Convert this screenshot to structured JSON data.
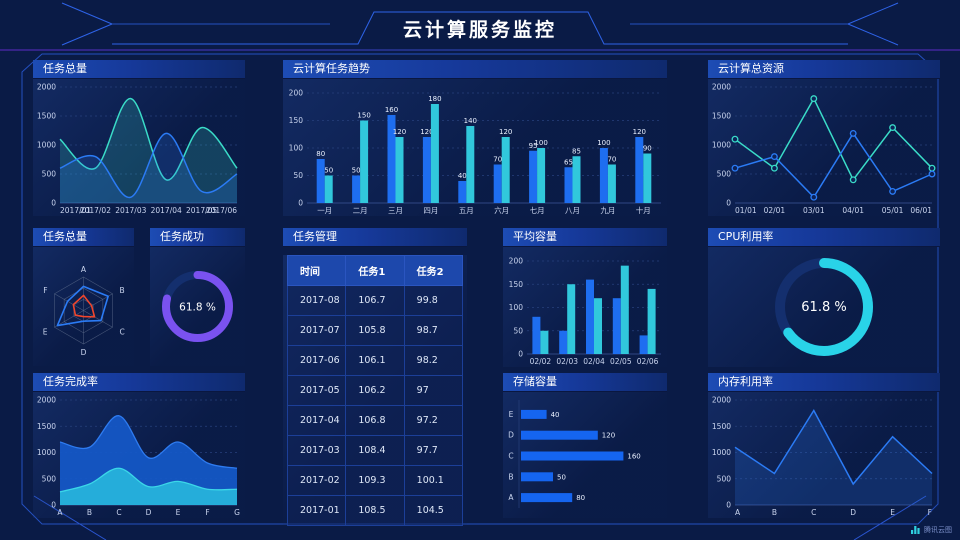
{
  "palette": {
    "background": "#0a1b46",
    "panel_header_from": "#1d4cb4",
    "panel_header_to": "#0f2a6e",
    "frame_line": "#2450c0",
    "accent_blue": "#1e6ef0",
    "accent_cyan": "#31c8dc",
    "accent_teal": "#3adcc8",
    "accent_purple": "#7a52f0",
    "accent_red": "#f0452c",
    "axis_text": "#c9d4ee",
    "grid_line": "#27407c"
  },
  "header": {
    "title": "云计算服务监控"
  },
  "footer": {
    "logo_text": "腾讯云图"
  },
  "panels": {
    "task_total_line": {
      "title": "任务总量"
    },
    "task_trend": {
      "title": "云计算任务趋势"
    },
    "total_resources": {
      "title": "云计算总资源"
    },
    "task_radar": {
      "title": "任务总量"
    },
    "task_success": {
      "title": "任务成功"
    },
    "task_table": {
      "title": "任务管理"
    },
    "avg_capacity": {
      "title": "平均容量"
    },
    "cpu_usage": {
      "title": "CPU利用率"
    },
    "completion_rate": {
      "title": "任务完成率"
    },
    "storage": {
      "title": "存储容量"
    },
    "memory": {
      "title": "内存利用率"
    }
  },
  "chart_data": [
    {
      "id": "task_total_line",
      "type": "line",
      "title": "任务总量",
      "x": [
        "2017/01",
        "2017/02",
        "2017/03",
        "2017/04",
        "2017/05",
        "2017/06"
      ],
      "ylim": [
        0,
        2000
      ],
      "yticks": [
        0,
        500,
        1000,
        1500,
        2000
      ],
      "grid": "dashed",
      "series": [
        {
          "name": "series-teal",
          "color": "#3adcc8",
          "smooth": true,
          "fill": true,
          "values": [
            1100,
            600,
            1800,
            400,
            1300,
            600
          ]
        },
        {
          "name": "series-blue",
          "color": "#2b7bf5",
          "smooth": true,
          "fill": true,
          "values": [
            600,
            800,
            100,
            1200,
            200,
            500
          ]
        }
      ]
    },
    {
      "id": "task_trend",
      "type": "bar",
      "title": "云计算任务趋势",
      "categories": [
        "一月",
        "二月",
        "三月",
        "四月",
        "五月",
        "六月",
        "七月",
        "八月",
        "九月",
        "十月"
      ],
      "ylim": [
        0,
        200
      ],
      "yticks": [
        0,
        50,
        100,
        150,
        200
      ],
      "show_values": true,
      "series": [
        {
          "name": "任务1",
          "color": "#1e6ef0",
          "values": [
            80,
            50,
            160,
            120,
            40,
            70,
            95,
            65,
            100,
            120
          ]
        },
        {
          "name": "任务2",
          "color": "#31c8dc",
          "values": [
            50,
            150,
            120,
            180,
            140,
            120,
            100,
            85,
            70,
            90
          ]
        }
      ]
    },
    {
      "id": "total_resources",
      "type": "line",
      "title": "云计算总资源",
      "x": [
        "01/01",
        "02/01",
        "03/01",
        "04/01",
        "05/01",
        "06/01"
      ],
      "ylim": [
        0,
        2000
      ],
      "yticks": [
        0,
        500,
        1000,
        1500,
        2000
      ],
      "grid": "dashed",
      "series": [
        {
          "name": "series-teal",
          "color": "#3adcc8",
          "markers": true,
          "values": [
            1100,
            600,
            1800,
            400,
            1300,
            600
          ]
        },
        {
          "name": "series-blue",
          "color": "#2b7bf5",
          "markers": true,
          "values": [
            600,
            800,
            100,
            1200,
            200,
            500
          ]
        }
      ]
    },
    {
      "id": "task_radar",
      "type": "radar",
      "title": "任务总量",
      "axes": [
        "A",
        "B",
        "C",
        "D",
        "E",
        "F"
      ],
      "max": 100,
      "series": [
        {
          "name": "series-blue",
          "color": "#2b7bf5",
          "values": [
            72,
            85,
            60,
            32,
            90,
            55
          ]
        },
        {
          "name": "series-red",
          "color": "#f0452c",
          "values": [
            45,
            28,
            38,
            18,
            28,
            35
          ]
        }
      ]
    },
    {
      "id": "task_success",
      "type": "donut",
      "title": "任务成功",
      "value": 61.8,
      "label": "61.8 %",
      "sweep": 0.79,
      "color": "#7a52f0"
    },
    {
      "id": "task_table",
      "type": "table",
      "title": "任务管理",
      "columns": [
        "时间",
        "任务1",
        "任务2"
      ],
      "rows": [
        [
          "2017-08",
          "106.7",
          "99.8"
        ],
        [
          "2017-07",
          "105.8",
          "98.7"
        ],
        [
          "2017-06",
          "106.1",
          "98.2"
        ],
        [
          "2017-05",
          "106.2",
          "97"
        ],
        [
          "2017-04",
          "106.8",
          "97.2"
        ],
        [
          "2017-03",
          "108.4",
          "97.7"
        ],
        [
          "2017-02",
          "109.3",
          "100.1"
        ],
        [
          "2017-01",
          "108.5",
          "104.5"
        ]
      ]
    },
    {
      "id": "avg_capacity",
      "type": "bar",
      "title": "平均容量",
      "categories": [
        "02/02",
        "02/03",
        "02/04",
        "02/05",
        "02/06"
      ],
      "ylim": [
        0,
        200
      ],
      "yticks": [
        0,
        50,
        100,
        150,
        200
      ],
      "show_values": false,
      "series": [
        {
          "name": "series-blue",
          "color": "#1e6ef0",
          "values": [
            80,
            50,
            160,
            120,
            40
          ]
        },
        {
          "name": "series-cyan",
          "color": "#31c8dc",
          "values": [
            50,
            150,
            120,
            190,
            140
          ]
        }
      ]
    },
    {
      "id": "cpu_usage",
      "type": "donut",
      "title": "CPU利用率",
      "value": 61.8,
      "label": "61.8 %",
      "sweep": 0.65,
      "color": "#29d3e8"
    },
    {
      "id": "completion_rate",
      "type": "area",
      "title": "任务完成率",
      "x": [
        "A",
        "B",
        "C",
        "D",
        "E",
        "F",
        "G"
      ],
      "ylim": [
        0,
        2000
      ],
      "yticks": [
        0,
        500,
        1000,
        1500,
        2000
      ],
      "grid": "dashed",
      "series": [
        {
          "name": "total-blue",
          "color": "#1559c9",
          "line": "#2e7bf0",
          "values": [
            1200,
            1100,
            1700,
            900,
            1200,
            800,
            700
          ]
        },
        {
          "name": "bottom-cyan",
          "color": "#27b5dc",
          "line": "#3bd7e8",
          "values": [
            250,
            400,
            700,
            350,
            450,
            300,
            300
          ]
        }
      ]
    },
    {
      "id": "storage",
      "type": "hbar",
      "title": "存储容量",
      "categories": [
        "E",
        "D",
        "C",
        "B",
        "A"
      ],
      "values": [
        40,
        120,
        160,
        50,
        80
      ],
      "xmax": 175,
      "color": "#1565f0"
    },
    {
      "id": "memory",
      "type": "line",
      "title": "内存利用率",
      "x": [
        "A",
        "B",
        "C",
        "D",
        "E",
        "F"
      ],
      "ylim": [
        0,
        2000
      ],
      "yticks": [
        0,
        500,
        1000,
        1500,
        2000
      ],
      "grid": "dashed",
      "series": [
        {
          "name": "series-blue",
          "color": "#2b7bf5",
          "fill": true,
          "values": [
            1100,
            600,
            1800,
            400,
            1300,
            600
          ]
        }
      ]
    }
  ]
}
